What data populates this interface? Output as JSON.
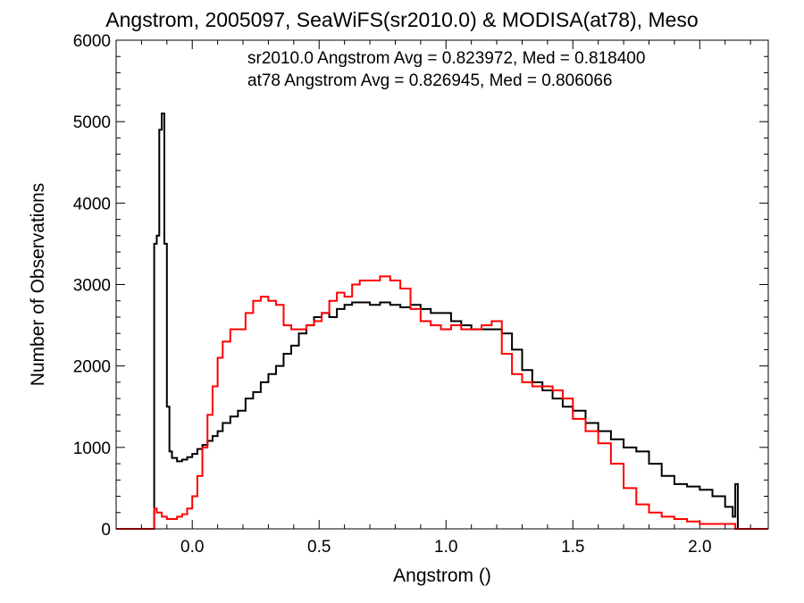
{
  "chart_data": {
    "type": "line",
    "title": "Angstrom, 2005097, SeaWiFS(sr2010.0) & MODISA(at78), Meso",
    "xlabel": "Angstrom ()",
    "ylabel": "Number of Observations",
    "xlim": [
      -0.3,
      2.27
    ],
    "ylim": [
      0,
      6000
    ],
    "x_ticks": [
      "0.0",
      "0.5",
      "1.0",
      "1.5",
      "2.0"
    ],
    "y_ticks": [
      "0",
      "1000",
      "2000",
      "3000",
      "4000",
      "5000",
      "6000"
    ],
    "grid": false,
    "annotations": [
      {
        "text": "sr2010.0 Angstrom Avg = 0.823972, Med = 0.818400",
        "color": "#000000"
      },
      {
        "text": "at78 Angstrom Avg = 0.826945, Med = 0.806066",
        "color": "#ff0000"
      }
    ],
    "series": [
      {
        "color": "#000000",
        "x": [
          -0.3,
          -0.16,
          -0.15,
          -0.14,
          -0.13,
          -0.12,
          -0.11,
          -0.1,
          -0.09,
          -0.08,
          -0.06,
          -0.04,
          -0.02,
          0.0,
          0.02,
          0.04,
          0.06,
          0.08,
          0.1,
          0.12,
          0.15,
          0.18,
          0.21,
          0.24,
          0.27,
          0.3,
          0.33,
          0.36,
          0.39,
          0.42,
          0.45,
          0.48,
          0.51,
          0.54,
          0.57,
          0.6,
          0.63,
          0.66,
          0.7,
          0.74,
          0.78,
          0.82,
          0.86,
          0.9,
          0.94,
          0.98,
          1.02,
          1.06,
          1.1,
          1.14,
          1.18,
          1.22,
          1.26,
          1.3,
          1.34,
          1.38,
          1.42,
          1.46,
          1.5,
          1.55,
          1.6,
          1.65,
          1.7,
          1.75,
          1.8,
          1.85,
          1.9,
          1.95,
          2.0,
          2.05,
          2.1,
          2.13,
          2.14,
          2.15,
          2.27
        ],
        "values": [
          0,
          0,
          3500,
          3600,
          4900,
          5100,
          3500,
          1500,
          950,
          870,
          830,
          850,
          880,
          920,
          980,
          1030,
          1080,
          1140,
          1200,
          1300,
          1380,
          1450,
          1600,
          1680,
          1800,
          1900,
          2000,
          2150,
          2250,
          2400,
          2500,
          2600,
          2650,
          2600,
          2700,
          2750,
          2780,
          2780,
          2750,
          2780,
          2750,
          2720,
          2750,
          2700,
          2650,
          2650,
          2550,
          2500,
          2450,
          2450,
          2450,
          2400,
          2200,
          1950,
          1800,
          1700,
          1600,
          1500,
          1450,
          1300,
          1200,
          1100,
          1000,
          950,
          800,
          650,
          550,
          520,
          480,
          400,
          270,
          150,
          550,
          0,
          0
        ]
      },
      {
        "color": "#ff0000",
        "x": [
          -0.3,
          -0.16,
          -0.15,
          -0.14,
          -0.12,
          -0.1,
          -0.08,
          -0.06,
          -0.04,
          -0.02,
          0.0,
          0.02,
          0.04,
          0.06,
          0.08,
          0.1,
          0.12,
          0.15,
          0.18,
          0.21,
          0.24,
          0.27,
          0.3,
          0.33,
          0.36,
          0.39,
          0.42,
          0.45,
          0.48,
          0.51,
          0.54,
          0.57,
          0.6,
          0.63,
          0.66,
          0.7,
          0.74,
          0.78,
          0.82,
          0.86,
          0.9,
          0.94,
          0.98,
          1.02,
          1.06,
          1.1,
          1.14,
          1.18,
          1.22,
          1.26,
          1.3,
          1.34,
          1.38,
          1.42,
          1.46,
          1.5,
          1.55,
          1.6,
          1.65,
          1.7,
          1.75,
          1.8,
          1.85,
          1.9,
          1.95,
          2.0,
          2.05,
          2.1,
          2.14,
          2.15,
          2.27
        ],
        "values": [
          0,
          0,
          250,
          200,
          150,
          120,
          120,
          150,
          180,
          250,
          400,
          650,
          1000,
          1400,
          1750,
          2100,
          2300,
          2450,
          2450,
          2650,
          2800,
          2850,
          2800,
          2750,
          2500,
          2450,
          2450,
          2500,
          2550,
          2650,
          2800,
          2900,
          2850,
          3000,
          3050,
          3050,
          3100,
          3050,
          2950,
          2700,
          2550,
          2500,
          2450,
          2500,
          2450,
          2450,
          2500,
          2550,
          2150,
          1900,
          1800,
          1750,
          1750,
          1700,
          1600,
          1350,
          1200,
          1050,
          800,
          500,
          300,
          200,
          150,
          120,
          90,
          60,
          60,
          60,
          0,
          0,
          0
        ]
      }
    ]
  }
}
